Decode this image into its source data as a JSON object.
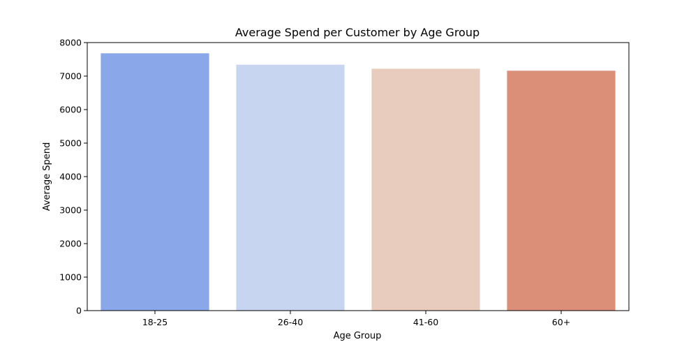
{
  "chart_data": {
    "type": "bar",
    "title": "Average Spend per Customer by Age Group",
    "xlabel": "Age Group",
    "ylabel": "Average Spend",
    "categories": [
      "18-25",
      "26-40",
      "41-60",
      "60+"
    ],
    "values": [
      7680,
      7340,
      7220,
      7160
    ],
    "ylim": [
      0,
      8000
    ],
    "yticks": [
      0,
      1000,
      2000,
      3000,
      4000,
      5000,
      6000,
      7000,
      8000
    ],
    "ytick_labels": [
      "0",
      "1000",
      "2000",
      "3000",
      "4000",
      "5000",
      "6000",
      "7000",
      "8000"
    ],
    "colors": [
      "#8aa7e9",
      "#c7d5f0",
      "#e8cdbf",
      "#db8e78"
    ],
    "grid": false,
    "legend": "none"
  }
}
